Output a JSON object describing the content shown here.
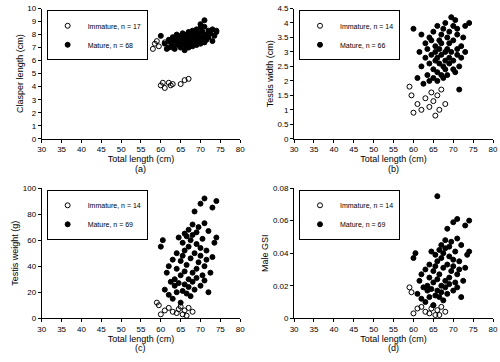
{
  "chart_data": [
    {
      "type": "scatter",
      "caption": "(a)",
      "x_label": "Total length (cm)",
      "y_label": "Clasper length (cm)",
      "xlim": [
        30,
        80
      ],
      "xticks": [
        30,
        35,
        40,
        45,
        50,
        55,
        60,
        65,
        70,
        75,
        80
      ],
      "ylim": [
        0,
        10
      ],
      "yticks": [
        0,
        1,
        2,
        3,
        4,
        5,
        6,
        7,
        8,
        9,
        10
      ],
      "legend": "upper left",
      "series": [
        {
          "name": "Immature, n = 17",
          "color": "#000000",
          "marker": "open circle",
          "x": [
            58,
            58.5,
            59,
            60,
            60.5,
            61,
            62,
            62.5,
            63,
            65,
            66,
            67,
            59.5,
            61,
            62,
            63,
            64
          ],
          "values": [
            6.9,
            7.3,
            7.5,
            4.1,
            4.3,
            3.9,
            4.3,
            4.1,
            4.2,
            4.2,
            4.5,
            4.6,
            7.1,
            7.4,
            7.2,
            7.0,
            7.3
          ]
        },
        {
          "name": "Mature, n = 68",
          "color": "#000000",
          "marker": "filled circle",
          "x": [
            60,
            61,
            61.5,
            62,
            62,
            62.5,
            63,
            63,
            63.5,
            63.5,
            64,
            64,
            64,
            64.5,
            64.5,
            65,
            65,
            65,
            65.5,
            65.5,
            65.5,
            66,
            66,
            66,
            66,
            66.5,
            66.5,
            66.5,
            67,
            67,
            67,
            67,
            67.5,
            67.5,
            67.5,
            68,
            68,
            68,
            68,
            68.5,
            68.5,
            68.5,
            69,
            69,
            69,
            69,
            69.5,
            69.5,
            70,
            70,
            70,
            70,
            70.5,
            70.5,
            71,
            71,
            71,
            71,
            71.5,
            71.5,
            72,
            72,
            72.5,
            73,
            73,
            73.5,
            74,
            74
          ],
          "values": [
            7.9,
            7.3,
            6.9,
            7.6,
            7.0,
            7.4,
            7.8,
            7.1,
            7.5,
            6.9,
            8.0,
            7.3,
            7.6,
            7.2,
            7.7,
            7.4,
            7.9,
            7.0,
            7.6,
            7.2,
            8.1,
            7.5,
            7.8,
            7.3,
            6.8,
            7.6,
            8.0,
            7.1,
            7.7,
            7.4,
            8.2,
            7.0,
            7.6,
            7.9,
            7.3,
            7.8,
            8.3,
            7.5,
            7.1,
            7.7,
            8.0,
            7.4,
            7.6,
            8.4,
            7.2,
            7.9,
            8.1,
            7.5,
            7.8,
            8.5,
            7.3,
            8.8,
            7.7,
            8.2,
            7.9,
            8.6,
            7.4,
            9.1,
            8.0,
            7.6,
            8.3,
            7.8,
            8.1,
            7.5,
            8.4,
            7.9,
            8.2,
            8.3
          ]
        }
      ]
    },
    {
      "type": "scatter",
      "caption": "(b)",
      "x_label": "Total length (cm)",
      "y_label": "Testis width (cm)",
      "xlim": [
        30,
        80
      ],
      "xticks": [
        30,
        35,
        40,
        45,
        50,
        55,
        60,
        65,
        70,
        75,
        80
      ],
      "ylim": [
        0,
        4.5
      ],
      "yticks": [
        0,
        0.5,
        1,
        1.5,
        2,
        2.5,
        3,
        3.5,
        4,
        4.5
      ],
      "legend": "upper left",
      "series": [
        {
          "name": "Immature, n = 14",
          "color": "#000000",
          "marker": "open circle",
          "x": [
            59,
            59.5,
            60,
            61,
            62,
            63,
            64,
            64.5,
            65,
            65.5,
            66,
            66.5,
            67,
            68
          ],
          "values": [
            1.8,
            1.5,
            0.9,
            1.2,
            1.0,
            1.4,
            1.1,
            1.6,
            1.3,
            0.8,
            1.5,
            1.0,
            1.7,
            1.2
          ]
        },
        {
          "name": "Mature, n = 66",
          "color": "#000000",
          "marker": "filled circle",
          "x": [
            60,
            61,
            61.5,
            62,
            62,
            62.5,
            63,
            63,
            63.5,
            63.5,
            64,
            64,
            64,
            64.5,
            64.5,
            65,
            65,
            65,
            65.5,
            65.5,
            65.5,
            66,
            66,
            66,
            66,
            66.5,
            66.5,
            66.5,
            67,
            67,
            67,
            67,
            67.5,
            67.5,
            67.5,
            68,
            68,
            68,
            68,
            68.5,
            68.5,
            68.5,
            69,
            69,
            69,
            69,
            69.5,
            69.5,
            70,
            70,
            70,
            70,
            70.5,
            70.5,
            71,
            71,
            71,
            71,
            71.5,
            71.5,
            72,
            72,
            72.5,
            73,
            73,
            74
          ],
          "values": [
            3.8,
            2.1,
            3.0,
            2.5,
            3.6,
            1.9,
            2.8,
            3.3,
            2.2,
            3.1,
            2.6,
            3.5,
            2.0,
            2.9,
            3.4,
            2.4,
            3.7,
            2.1,
            3.0,
            2.7,
            3.2,
            2.3,
            3.9,
            2.8,
            2.0,
            3.4,
            2.6,
            3.1,
            2.2,
            3.6,
            2.9,
            3.3,
            2.5,
            3.8,
            2.1,
            3.0,
            2.7,
            4.0,
            2.4,
            3.5,
            3.1,
            2.2,
            3.7,
            2.8,
            3.3,
            2.6,
            4.2,
            3.0,
            2.4,
            3.9,
            2.7,
            3.4,
            4.1,
            2.3,
            3.6,
            3.1,
            2.9,
            3.8,
            2.5,
            1.7,
            3.2,
            2.8,
            3.5,
            3.0,
            3.9,
            4.0
          ]
        }
      ]
    },
    {
      "type": "scatter",
      "caption": "(c)",
      "x_label": "Total length (cm)",
      "y_label": "Testis weight (g)",
      "xlim": [
        30,
        80
      ],
      "xticks": [
        30,
        35,
        40,
        45,
        50,
        55,
        60,
        65,
        70,
        75,
        80
      ],
      "ylim": [
        0,
        100
      ],
      "yticks": [
        0,
        20,
        40,
        60,
        80,
        100
      ],
      "legend": "upper left",
      "series": [
        {
          "name": "Immature, n = 14",
          "color": "#000000",
          "marker": "open circle",
          "x": [
            59,
            59.5,
            60,
            61,
            62,
            63,
            64,
            64.5,
            65,
            65.5,
            66,
            66.5,
            67,
            68
          ],
          "values": [
            12,
            10,
            3,
            6,
            8,
            5,
            4,
            7,
            9,
            3,
            6,
            2,
            8,
            5
          ]
        },
        {
          "name": "Mature, n = 69",
          "color": "#000000",
          "marker": "filled circle",
          "x": [
            60.5,
            60,
            61,
            61.5,
            62,
            62,
            62.5,
            63,
            63,
            63.5,
            63.5,
            64,
            64,
            64,
            64.5,
            64.5,
            65,
            65,
            65,
            65.5,
            65.5,
            65.5,
            66,
            66,
            66,
            66,
            66.5,
            66.5,
            66.5,
            67,
            67,
            67,
            67,
            67.5,
            67.5,
            67.5,
            68,
            68,
            68,
            68,
            68.5,
            68.5,
            68.5,
            69,
            69,
            69,
            69,
            69.5,
            69.5,
            70,
            70,
            70,
            70,
            70.5,
            70.5,
            71,
            71,
            71,
            71,
            71.5,
            71.5,
            72,
            72,
            72.5,
            73,
            73,
            73.5,
            74,
            74
          ],
          "values": [
            60,
            55,
            22,
            35,
            18,
            40,
            28,
            45,
            15,
            30,
            25,
            50,
            20,
            38,
            62,
            27,
            44,
            12,
            33,
            58,
            21,
            48,
            36,
            65,
            26,
            52,
            19,
            41,
            63,
            30,
            55,
            24,
            68,
            17,
            46,
            60,
            35,
            72,
            28,
            64,
            22,
            50,
            82,
            38,
            57,
            31,
            66,
            43,
            70,
            25,
            54,
            48,
            88,
            33,
            61,
            40,
            73,
            29,
            92,
            52,
            45,
            20,
            67,
            35,
            85,
            47,
            58,
            90,
            62
          ]
        }
      ]
    },
    {
      "type": "scatter",
      "caption": "(d)",
      "x_label": "Total length (cm)",
      "y_label": "Male GSI",
      "xlim": [
        30,
        80
      ],
      "xticks": [
        30,
        35,
        40,
        45,
        50,
        55,
        60,
        65,
        70,
        75,
        80
      ],
      "ylim": [
        0,
        0.08
      ],
      "yticks": [
        0,
        0.02,
        0.04,
        0.06,
        0.08
      ],
      "legend": "upper left",
      "series": [
        {
          "name": "Immature, n = 14",
          "color": "#000000",
          "marker": "open circle",
          "x": [
            59,
            59.5,
            60,
            61,
            62,
            63,
            64,
            64.5,
            65,
            65.5,
            66,
            66.5,
            67,
            68
          ],
          "values": [
            0.019,
            0.016,
            0.003,
            0.006,
            0.007,
            0.004,
            0.003,
            0.006,
            0.008,
            0.002,
            0.005,
            0.002,
            0.007,
            0.004
          ]
        },
        {
          "name": "Mature, n = 69",
          "color": "#000000",
          "marker": "filled circle",
          "x": [
            60.5,
            60,
            61,
            61.5,
            62,
            62,
            62.5,
            63,
            63,
            63.5,
            63.5,
            64,
            64,
            64,
            64.5,
            64.5,
            65,
            65,
            65,
            65.5,
            65.5,
            65.5,
            66,
            66,
            66,
            66,
            66.5,
            66.5,
            66.5,
            67,
            67,
            67,
            67,
            67.5,
            67.5,
            67.5,
            68,
            68,
            68,
            68,
            68.5,
            68.5,
            68.5,
            69,
            69,
            69,
            69,
            69.5,
            69.5,
            70,
            70,
            70,
            70,
            70.5,
            70.5,
            71,
            71,
            71,
            71,
            71.5,
            71.5,
            72,
            72,
            72.5,
            73,
            73,
            73.5,
            74,
            74
          ],
          "values": [
            0.04,
            0.037,
            0.015,
            0.023,
            0.012,
            0.027,
            0.019,
            0.03,
            0.01,
            0.02,
            0.017,
            0.033,
            0.013,
            0.025,
            0.041,
            0.018,
            0.029,
            0.008,
            0.022,
            0.039,
            0.014,
            0.032,
            0.024,
            0.075,
            0.017,
            0.035,
            0.013,
            0.027,
            0.042,
            0.02,
            0.037,
            0.016,
            0.045,
            0.011,
            0.031,
            0.04,
            0.023,
            0.048,
            0.019,
            0.043,
            0.015,
            0.033,
            0.055,
            0.025,
            0.038,
            0.021,
            0.044,
            0.029,
            0.047,
            0.017,
            0.036,
            0.032,
            0.059,
            0.022,
            0.041,
            0.027,
            0.049,
            0.019,
            0.061,
            0.035,
            0.03,
            0.013,
            0.045,
            0.023,
            0.057,
            0.031,
            0.039,
            0.06,
            0.041
          ]
        }
      ]
    }
  ]
}
